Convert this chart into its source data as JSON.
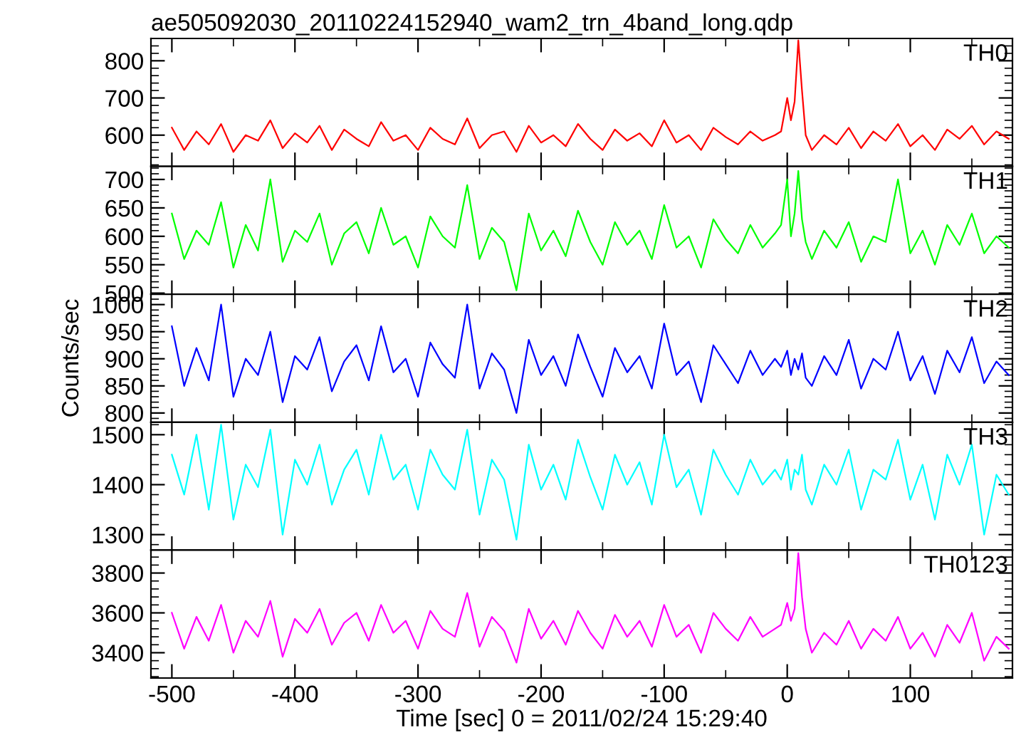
{
  "chart_data": [
    {
      "type": "line",
      "title": "ae505092030_20110224152940_wam2_trn_4band_long.qdp",
      "tick_labels": "y",
      "xlim": [
        -517,
        183
      ],
      "xticks": [
        -500,
        -400,
        -300,
        -200,
        -100,
        0,
        100
      ],
      "ylim": [
        516,
        860
      ],
      "yticks": [
        600,
        700,
        800
      ],
      "x": [
        -500,
        -490,
        -480,
        -470,
        -460,
        -450,
        -440,
        -430,
        -420,
        -410,
        -400,
        -390,
        -380,
        -370,
        -360,
        -350,
        -340,
        -330,
        -320,
        -310,
        -300,
        -290,
        -280,
        -270,
        -260,
        -250,
        -240,
        -230,
        -220,
        -210,
        -200,
        -190,
        -180,
        -170,
        -160,
        -150,
        -140,
        -130,
        -120,
        -110,
        -100,
        -90,
        -80,
        -70,
        -60,
        -50,
        -40,
        -30,
        -20,
        -10,
        -5,
        0,
        3,
        6,
        9,
        12,
        15,
        20,
        30,
        40,
        50,
        60,
        70,
        80,
        90,
        100,
        110,
        120,
        130,
        140,
        150,
        160,
        170,
        180
      ],
      "series": [
        {
          "name": "TH0",
          "color": "#ff0000",
          "values": [
            620,
            560,
            610,
            575,
            630,
            555,
            600,
            585,
            640,
            565,
            605,
            580,
            625,
            560,
            615,
            590,
            570,
            635,
            585,
            600,
            560,
            620,
            590,
            575,
            645,
            565,
            600,
            610,
            555,
            625,
            580,
            600,
            570,
            630,
            590,
            560,
            615,
            585,
            605,
            570,
            640,
            580,
            600,
            560,
            620,
            595,
            575,
            610,
            585,
            600,
            610,
            700,
            640,
            690,
            855,
            720,
            600,
            560,
            600,
            575,
            620,
            565,
            610,
            585,
            630,
            570,
            600,
            560,
            615,
            590,
            625,
            575,
            610,
            590
          ]
        }
      ]
    },
    {
      "type": "line",
      "tick_labels": "y",
      "xlim": [
        -517,
        183
      ],
      "xticks": [
        -500,
        -400,
        -300,
        -200,
        -100,
        0,
        100
      ],
      "ylim": [
        498,
        723
      ],
      "yticks": [
        500,
        550,
        600,
        650,
        700
      ],
      "x": [
        -500,
        -490,
        -480,
        -470,
        -460,
        -450,
        -440,
        -430,
        -420,
        -410,
        -400,
        -390,
        -380,
        -370,
        -360,
        -350,
        -340,
        -330,
        -320,
        -310,
        -300,
        -290,
        -280,
        -270,
        -260,
        -250,
        -240,
        -230,
        -220,
        -210,
        -200,
        -190,
        -180,
        -170,
        -160,
        -150,
        -140,
        -130,
        -120,
        -110,
        -100,
        -90,
        -80,
        -70,
        -60,
        -50,
        -40,
        -30,
        -20,
        -10,
        -5,
        0,
        3,
        6,
        9,
        12,
        15,
        20,
        30,
        40,
        50,
        60,
        70,
        80,
        90,
        100,
        110,
        120,
        130,
        140,
        150,
        160,
        170,
        180
      ],
      "series": [
        {
          "name": "TH1",
          "color": "#00ff00",
          "values": [
            640,
            560,
            610,
            585,
            660,
            545,
            620,
            575,
            700,
            555,
            610,
            590,
            640,
            550,
            605,
            625,
            570,
            650,
            585,
            600,
            545,
            635,
            600,
            580,
            690,
            560,
            615,
            590,
            505,
            640,
            575,
            610,
            565,
            645,
            590,
            550,
            625,
            585,
            610,
            560,
            655,
            580,
            600,
            545,
            630,
            595,
            570,
            620,
            580,
            605,
            620,
            700,
            600,
            640,
            715,
            630,
            590,
            560,
            610,
            580,
            625,
            555,
            600,
            590,
            700,
            570,
            610,
            550,
            620,
            585,
            640,
            570,
            600,
            580
          ]
        }
      ]
    },
    {
      "type": "line",
      "tick_labels": "y",
      "ylabel": "Counts/sec",
      "xlim": [
        -517,
        183
      ],
      "xticks": [
        -500,
        -400,
        -300,
        -200,
        -100,
        0,
        100
      ],
      "ylim": [
        783,
        1019
      ],
      "yticks": [
        800,
        850,
        900,
        950,
        1000
      ],
      "x": [
        -500,
        -490,
        -480,
        -470,
        -460,
        -450,
        -440,
        -430,
        -420,
        -410,
        -400,
        -390,
        -380,
        -370,
        -360,
        -350,
        -340,
        -330,
        -320,
        -310,
        -300,
        -290,
        -280,
        -270,
        -260,
        -250,
        -240,
        -230,
        -220,
        -210,
        -200,
        -190,
        -180,
        -170,
        -160,
        -150,
        -140,
        -130,
        -120,
        -110,
        -100,
        -90,
        -80,
        -70,
        -60,
        -50,
        -40,
        -30,
        -20,
        -10,
        -5,
        0,
        3,
        6,
        9,
        12,
        15,
        20,
        30,
        40,
        50,
        60,
        70,
        80,
        90,
        100,
        110,
        120,
        130,
        140,
        150,
        160,
        170,
        180
      ],
      "series": [
        {
          "name": "TH2",
          "color": "#0000ff",
          "values": [
            960,
            850,
            920,
            860,
            1000,
            830,
            900,
            870,
            950,
            820,
            905,
            880,
            940,
            840,
            895,
            925,
            860,
            960,
            875,
            900,
            830,
            930,
            890,
            865,
            1000,
            845,
            910,
            880,
            800,
            935,
            870,
            905,
            850,
            945,
            885,
            830,
            920,
            875,
            905,
            845,
            965,
            870,
            895,
            820,
            925,
            890,
            855,
            915,
            870,
            900,
            885,
            915,
            870,
            900,
            880,
            910,
            865,
            850,
            905,
            870,
            935,
            845,
            900,
            880,
            950,
            860,
            905,
            835,
            915,
            875,
            940,
            855,
            895,
            870
          ]
        }
      ]
    },
    {
      "type": "line",
      "tick_labels": "y",
      "xlim": [
        -517,
        183
      ],
      "xticks": [
        -500,
        -400,
        -300,
        -200,
        -100,
        0,
        100
      ],
      "ylim": [
        1269,
        1525
      ],
      "yticks": [
        1300,
        1400,
        1500
      ],
      "x": [
        -500,
        -490,
        -480,
        -470,
        -460,
        -450,
        -440,
        -430,
        -420,
        -410,
        -400,
        -390,
        -380,
        -370,
        -360,
        -350,
        -340,
        -330,
        -320,
        -310,
        -300,
        -290,
        -280,
        -270,
        -260,
        -250,
        -240,
        -230,
        -220,
        -210,
        -200,
        -190,
        -180,
        -170,
        -160,
        -150,
        -140,
        -130,
        -120,
        -110,
        -100,
        -90,
        -80,
        -70,
        -60,
        -50,
        -40,
        -30,
        -20,
        -10,
        -5,
        0,
        3,
        6,
        9,
        12,
        15,
        20,
        30,
        40,
        50,
        60,
        70,
        80,
        90,
        100,
        110,
        120,
        130,
        140,
        150,
        160,
        170,
        180
      ],
      "series": [
        {
          "name": "TH3",
          "color": "#00ffff",
          "values": [
            1460,
            1380,
            1500,
            1350,
            1520,
            1330,
            1440,
            1395,
            1510,
            1300,
            1450,
            1400,
            1480,
            1360,
            1430,
            1470,
            1380,
            1500,
            1410,
            1440,
            1350,
            1470,
            1420,
            1390,
            1510,
            1340,
            1450,
            1410,
            1290,
            1480,
            1390,
            1440,
            1370,
            1490,
            1415,
            1350,
            1460,
            1400,
            1445,
            1360,
            1500,
            1395,
            1430,
            1340,
            1470,
            1420,
            1380,
            1450,
            1400,
            1430,
            1410,
            1450,
            1390,
            1430,
            1420,
            1460,
            1390,
            1360,
            1440,
            1400,
            1470,
            1350,
            1430,
            1410,
            1490,
            1370,
            1440,
            1330,
            1460,
            1400,
            1480,
            1300,
            1420,
            1380
          ]
        }
      ]
    },
    {
      "type": "line",
      "xlabel": "Time [sec] 0 = 2011/02/24 15:29:40",
      "xlim": [
        -517,
        183
      ],
      "xticks": [
        -500,
        -400,
        -300,
        -200,
        -100,
        0,
        100
      ],
      "ylim": [
        3273,
        3915
      ],
      "yticks": [
        3400,
        3600,
        3800
      ],
      "x": [
        -500,
        -490,
        -480,
        -470,
        -460,
        -450,
        -440,
        -430,
        -420,
        -410,
        -400,
        -390,
        -380,
        -370,
        -360,
        -350,
        -340,
        -330,
        -320,
        -310,
        -300,
        -290,
        -280,
        -270,
        -260,
        -250,
        -240,
        -230,
        -220,
        -210,
        -200,
        -190,
        -180,
        -170,
        -160,
        -150,
        -140,
        -130,
        -120,
        -110,
        -100,
        -90,
        -80,
        -70,
        -60,
        -50,
        -40,
        -30,
        -20,
        -10,
        -5,
        0,
        3,
        6,
        9,
        12,
        15,
        20,
        30,
        40,
        50,
        60,
        70,
        80,
        90,
        100,
        110,
        120,
        130,
        140,
        150,
        160,
        170,
        180
      ],
      "series": [
        {
          "name": "TH0123",
          "color": "#ff00ff",
          "values": [
            3600,
            3420,
            3580,
            3460,
            3640,
            3400,
            3560,
            3480,
            3660,
            3380,
            3570,
            3500,
            3620,
            3440,
            3550,
            3600,
            3460,
            3640,
            3500,
            3560,
            3420,
            3610,
            3520,
            3480,
            3700,
            3430,
            3580,
            3510,
            3350,
            3620,
            3470,
            3560,
            3440,
            3610,
            3500,
            3420,
            3590,
            3480,
            3560,
            3430,
            3640,
            3480,
            3540,
            3400,
            3600,
            3520,
            3460,
            3580,
            3480,
            3520,
            3540,
            3650,
            3560,
            3620,
            3900,
            3680,
            3520,
            3400,
            3500,
            3440,
            3560,
            3420,
            3520,
            3460,
            3580,
            3420,
            3500,
            3380,
            3540,
            3450,
            3600,
            3360,
            3480,
            3420
          ]
        }
      ]
    }
  ]
}
